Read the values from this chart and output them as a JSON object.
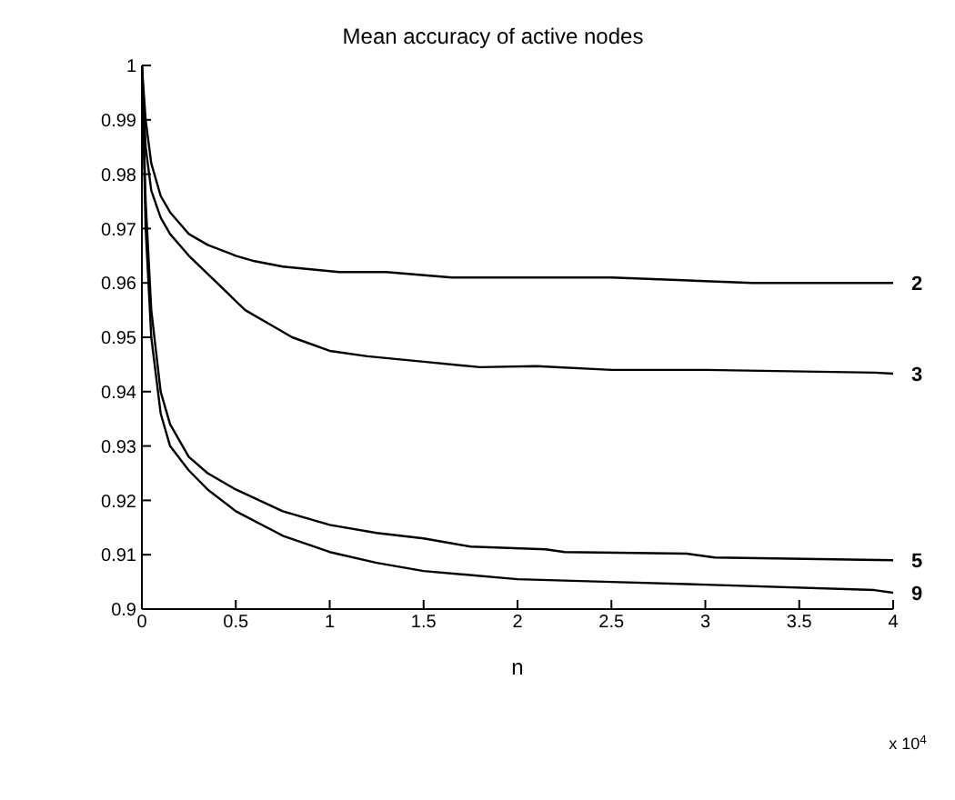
{
  "chart_data": {
    "type": "line",
    "title": "Mean accuracy of active nodes",
    "xlabel": "n",
    "annotations": [
      "x 10$^{4}$"
    ],
    "series": [
      {
        "name": "2",
        "color": "#000000",
        "x": [
          0,
          0.02,
          0.05,
          0.1,
          0.15,
          0.25,
          0.35,
          0.5,
          0.6,
          0.75,
          1.05,
          1.3,
          1.65,
          2.5,
          3.25,
          4
        ],
        "values": [
          1,
          0.99,
          0.982,
          0.976,
          0.973,
          0.969,
          0.967,
          0.965,
          0.964,
          0.963,
          0.962,
          0.962,
          0.961,
          0.961,
          0.96,
          0.96
        ]
      },
      {
        "name": "3",
        "color": "#000000",
        "x": [
          0,
          0.02,
          0.05,
          0.1,
          0.15,
          0.25,
          0.4,
          0.55,
          0.7,
          0.8,
          1.0,
          1.2,
          1.5,
          1.8,
          2.1,
          2.5,
          3.0,
          3.9,
          4
        ],
        "values": [
          1,
          0.985,
          0.977,
          0.972,
          0.969,
          0.965,
          0.96,
          0.955,
          0.952,
          0.95,
          0.9475,
          0.9465,
          0.9455,
          0.9445,
          0.9447,
          0.944,
          0.944,
          0.9435,
          0.9433
        ]
      },
      {
        "name": "5",
        "color": "#000000",
        "x": [
          0,
          0.02,
          0.05,
          0.1,
          0.15,
          0.25,
          0.35,
          0.5,
          0.75,
          1,
          1.25,
          1.5,
          1.75,
          2.15,
          2.25,
          2.9,
          3.05,
          4
        ],
        "values": [
          1,
          0.975,
          0.955,
          0.94,
          0.934,
          0.928,
          0.925,
          0.922,
          0.918,
          0.9155,
          0.914,
          0.913,
          0.9115,
          0.911,
          0.9105,
          0.9102,
          0.9095,
          0.909
        ]
      },
      {
        "name": "9",
        "color": "#000000",
        "x": [
          0,
          0.02,
          0.05,
          0.1,
          0.15,
          0.25,
          0.35,
          0.5,
          0.75,
          1,
          1.25,
          1.5,
          2,
          2.5,
          3,
          3.9,
          4
        ],
        "values": [
          1,
          0.97,
          0.95,
          0.936,
          0.93,
          0.9255,
          0.922,
          0.918,
          0.9135,
          0.9105,
          0.9085,
          0.907,
          0.9055,
          0.905,
          0.9045,
          0.9035,
          0.903
        ]
      }
    ],
    "xlim": [
      0,
      4
    ],
    "xticks": [
      0,
      0.5,
      1,
      1.5,
      2,
      2.5,
      3,
      3.5,
      4
    ],
    "ylim": [
      0.9,
      1
    ],
    "yticks": [
      0.9,
      0.91,
      0.92,
      0.93,
      0.94,
      0.95,
      0.96,
      0.97,
      0.98,
      0.99,
      1
    ],
    "grid": false,
    "legend": false,
    "marker": "none",
    "line_style": "solid"
  }
}
